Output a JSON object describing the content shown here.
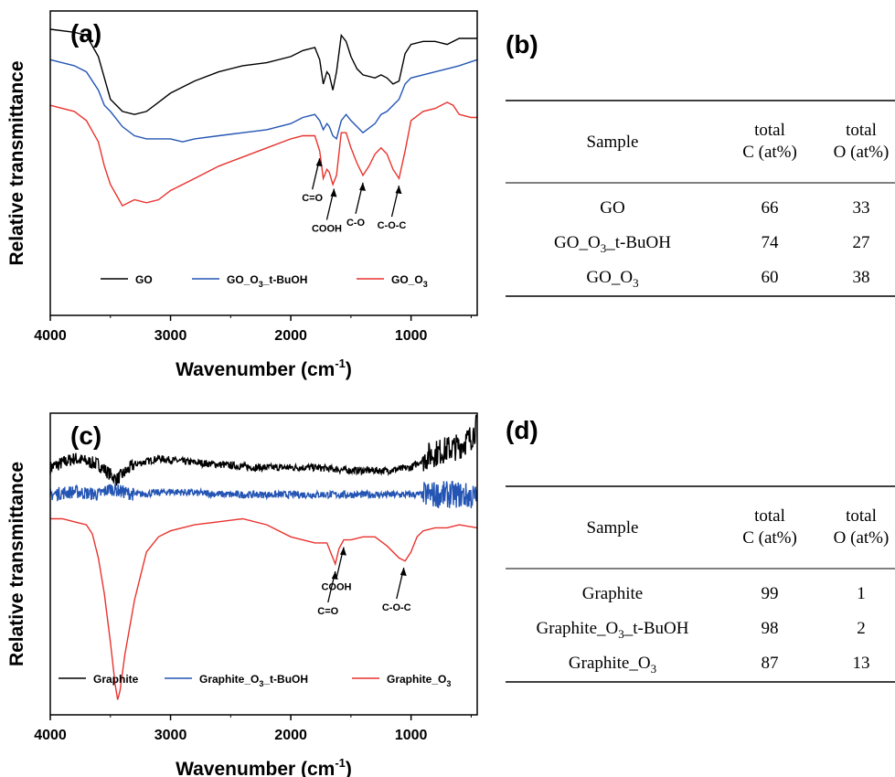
{
  "chart_data": [
    {
      "panel_label": "(a)",
      "type": "line",
      "xlabel": "Wavenumber (cm",
      "xlabel_sup": "-1",
      "xlabel_close": ")",
      "ylabel": "Relative transmittance",
      "xlim": [
        4000,
        450
      ],
      "x_reversed": true,
      "ylim": [
        0,
        100
      ],
      "y_ticks_shown": false,
      "xticks": [
        4000,
        3000,
        2000,
        1000
      ],
      "grid": false,
      "legend_position": "bottom",
      "series": [
        {
          "name": "GO",
          "color": "#000000",
          "points": [
            [
              4000,
              94
            ],
            [
              3800,
              93
            ],
            [
              3700,
              92
            ],
            [
              3600,
              85
            ],
            [
              3550,
              78
            ],
            [
              3500,
              71
            ],
            [
              3400,
              67
            ],
            [
              3300,
              66
            ],
            [
              3200,
              67
            ],
            [
              3100,
              70
            ],
            [
              3000,
              73
            ],
            [
              2800,
              77
            ],
            [
              2600,
              80
            ],
            [
              2400,
              82
            ],
            [
              2200,
              83
            ],
            [
              2000,
              85
            ],
            [
              1900,
              87
            ],
            [
              1800,
              88
            ],
            [
              1760,
              84
            ],
            [
              1730,
              76
            ],
            [
              1700,
              80
            ],
            [
              1680,
              79
            ],
            [
              1650,
              74
            ],
            [
              1620,
              80
            ],
            [
              1580,
              92
            ],
            [
              1540,
              90
            ],
            [
              1500,
              85
            ],
            [
              1450,
              81
            ],
            [
              1400,
              79
            ],
            [
              1300,
              78
            ],
            [
              1250,
              79
            ],
            [
              1200,
              78
            ],
            [
              1150,
              76
            ],
            [
              1100,
              77
            ],
            [
              1050,
              86
            ],
            [
              1000,
              89
            ],
            [
              900,
              90
            ],
            [
              800,
              90
            ],
            [
              700,
              89
            ],
            [
              600,
              91
            ],
            [
              450,
              91
            ]
          ]
        },
        {
          "name": "GO_O₃_t-BuOH",
          "color": "#2455b4",
          "points": [
            [
              4000,
              84
            ],
            [
              3800,
              82
            ],
            [
              3700,
              80
            ],
            [
              3600,
              74
            ],
            [
              3550,
              69
            ],
            [
              3500,
              67
            ],
            [
              3400,
              62
            ],
            [
              3300,
              59
            ],
            [
              3200,
              58
            ],
            [
              3000,
              58
            ],
            [
              2900,
              57
            ],
            [
              2800,
              58
            ],
            [
              2600,
              59
            ],
            [
              2400,
              60
            ],
            [
              2200,
              61
            ],
            [
              2000,
              63
            ],
            [
              1900,
              65
            ],
            [
              1800,
              66
            ],
            [
              1760,
              64
            ],
            [
              1730,
              61
            ],
            [
              1700,
              63
            ],
            [
              1680,
              62
            ],
            [
              1650,
              59
            ],
            [
              1620,
              58
            ],
            [
              1580,
              64
            ],
            [
              1540,
              66
            ],
            [
              1500,
              64
            ],
            [
              1450,
              62
            ],
            [
              1400,
              60
            ],
            [
              1300,
              63
            ],
            [
              1250,
              66
            ],
            [
              1200,
              67
            ],
            [
              1150,
              69
            ],
            [
              1100,
              71
            ],
            [
              1050,
              76
            ],
            [
              1000,
              78
            ],
            [
              900,
              79
            ],
            [
              800,
              80
            ],
            [
              700,
              81
            ],
            [
              600,
              82
            ],
            [
              450,
              84
            ]
          ]
        },
        {
          "name": "GO_O₃",
          "color": "#e8332e",
          "points": [
            [
              4000,
              69
            ],
            [
              3800,
              67
            ],
            [
              3700,
              64
            ],
            [
              3600,
              57
            ],
            [
              3550,
              49
            ],
            [
              3500,
              43
            ],
            [
              3400,
              36
            ],
            [
              3350,
              37
            ],
            [
              3300,
              38
            ],
            [
              3200,
              37
            ],
            [
              3100,
              38
            ],
            [
              3000,
              41
            ],
            [
              2800,
              45
            ],
            [
              2600,
              49
            ],
            [
              2400,
              52
            ],
            [
              2200,
              55
            ],
            [
              2000,
              58
            ],
            [
              1900,
              59
            ],
            [
              1800,
              59
            ],
            [
              1760,
              54
            ],
            [
              1730,
              45
            ],
            [
              1700,
              48
            ],
            [
              1680,
              47
            ],
            [
              1650,
              43
            ],
            [
              1620,
              46
            ],
            [
              1580,
              60
            ],
            [
              1540,
              60
            ],
            [
              1500,
              55
            ],
            [
              1450,
              50
            ],
            [
              1400,
              46
            ],
            [
              1350,
              49
            ],
            [
              1300,
              53
            ],
            [
              1250,
              55
            ],
            [
              1200,
              53
            ],
            [
              1150,
              48
            ],
            [
              1100,
              45
            ],
            [
              1050,
              54
            ],
            [
              1000,
              64
            ],
            [
              900,
              67
            ],
            [
              800,
              68
            ],
            [
              700,
              70
            ],
            [
              650,
              69
            ],
            [
              600,
              66
            ],
            [
              500,
              65
            ],
            [
              450,
              65
            ]
          ]
        }
      ],
      "annotations": [
        {
          "label": "C=O",
          "x": 1760
        },
        {
          "label": "COOH",
          "x": 1640
        },
        {
          "label": "C-O",
          "x": 1400
        },
        {
          "label": "C-O-C",
          "x": 1100
        }
      ],
      "legend": [
        {
          "label": "GO",
          "color": "#000000"
        },
        {
          "label_main": "GO_O",
          "label_sub": "3",
          "label_tail": "_t-BuOH",
          "color": "#2455b4"
        },
        {
          "label_main": "GO_O",
          "label_sub": "3",
          "label_tail": "",
          "color": "#e8332e"
        }
      ]
    },
    {
      "panel_label": "(c)",
      "type": "line",
      "xlabel": "Wavenumber (cm",
      "xlabel_sup": "-1",
      "xlabel_close": ")",
      "ylabel": "Relative transmittance",
      "xlim": [
        4000,
        450
      ],
      "x_reversed": true,
      "ylim": [
        0,
        100
      ],
      "y_ticks_shown": false,
      "xticks": [
        4000,
        3000,
        2000,
        1000
      ],
      "grid": false,
      "legend_position": "bottom",
      "series": [
        {
          "name": "Graphite",
          "color": "#000000",
          "noisy": true,
          "points": [
            [
              4000,
              82
            ],
            [
              3800,
              85
            ],
            [
              3600,
              83
            ],
            [
              3450,
              78
            ],
            [
              3300,
              83
            ],
            [
              3100,
              85
            ],
            [
              2900,
              84
            ],
            [
              2600,
              83
            ],
            [
              2300,
              82
            ],
            [
              2000,
              82
            ],
            [
              1800,
              82
            ],
            [
              1500,
              81
            ],
            [
              1200,
              81
            ],
            [
              1000,
              82
            ],
            [
              850,
              86
            ],
            [
              700,
              88
            ],
            [
              600,
              89
            ],
            [
              500,
              92
            ],
            [
              450,
              96
            ]
          ]
        },
        {
          "name": "Graphite_O₃_t-BuOH",
          "color": "#2455b4",
          "noisy": true,
          "points": [
            [
              4000,
              73
            ],
            [
              3800,
              74
            ],
            [
              3600,
              73
            ],
            [
              3500,
              75
            ],
            [
              3300,
              73
            ],
            [
              3000,
              74
            ],
            [
              2500,
              73
            ],
            [
              2000,
              73
            ],
            [
              1500,
              73
            ],
            [
              1000,
              73
            ],
            [
              800,
              73
            ],
            [
              600,
              73
            ],
            [
              450,
              72
            ]
          ]
        },
        {
          "name": "Graphite_O₃",
          "color": "#e8332e",
          "points": [
            [
              4000,
              65
            ],
            [
              3900,
              65
            ],
            [
              3800,
              64
            ],
            [
              3700,
              63
            ],
            [
              3650,
              60
            ],
            [
              3600,
              52
            ],
            [
              3550,
              40
            ],
            [
              3500,
              24
            ],
            [
              3460,
              10
            ],
            [
              3440,
              5
            ],
            [
              3420,
              8
            ],
            [
              3380,
              20
            ],
            [
              3300,
              38
            ],
            [
              3200,
              54
            ],
            [
              3100,
              59
            ],
            [
              3000,
              61
            ],
            [
              2800,
              63
            ],
            [
              2600,
              64
            ],
            [
              2400,
              65
            ],
            [
              2200,
              63
            ],
            [
              2000,
              59
            ],
            [
              1800,
              57
            ],
            [
              1700,
              57
            ],
            [
              1660,
              53
            ],
            [
              1630,
              50
            ],
            [
              1600,
              55
            ],
            [
              1560,
              58
            ],
            [
              1500,
              58
            ],
            [
              1400,
              59
            ],
            [
              1300,
              59
            ],
            [
              1200,
              56
            ],
            [
              1100,
              52
            ],
            [
              1050,
              51
            ],
            [
              1000,
              54
            ],
            [
              950,
              59
            ],
            [
              900,
              61
            ],
            [
              800,
              62
            ],
            [
              700,
              62
            ],
            [
              600,
              63
            ],
            [
              450,
              62
            ]
          ]
        }
      ],
      "annotations": [
        {
          "label": "C=O",
          "x": 1630
        },
        {
          "label": "COOH",
          "x": 1560
        },
        {
          "label": "C-O-C",
          "x": 1060
        }
      ],
      "legend": [
        {
          "label": "Graphite",
          "color": "#000000"
        },
        {
          "label_main": "Graphite_O",
          "label_sub": "3",
          "label_tail": "_t-BuOH",
          "color": "#2455b4"
        },
        {
          "label_main": "Graphite_O",
          "label_sub": "3",
          "label_tail": "",
          "color": "#e8332e"
        }
      ]
    },
    {
      "panel_label": "(b)",
      "type": "table",
      "columns": [
        {
          "line1": "Sample",
          "line2": ""
        },
        {
          "line1": "total",
          "line2": "C  (at%)"
        },
        {
          "line1": "total",
          "line2": "O (at%)"
        }
      ],
      "rows": [
        {
          "sample_main": "GO",
          "sample_sub": "",
          "sample_tail": "",
          "c": "66",
          "o": "33"
        },
        {
          "sample_main": "GO_O",
          "sample_sub": "3",
          "sample_tail": "_t-BuOH",
          "c": "74",
          "o": "27"
        },
        {
          "sample_main": "GO_O",
          "sample_sub": "3",
          "sample_tail": "",
          "c": "60",
          "o": "38"
        }
      ]
    },
    {
      "panel_label": "(d)",
      "type": "table",
      "columns": [
        {
          "line1": "Sample",
          "line2": ""
        },
        {
          "line1": "total",
          "line2": "C  (at%)"
        },
        {
          "line1": "total",
          "line2": "O (at%)"
        }
      ],
      "rows": [
        {
          "sample_main": "Graphite",
          "sample_sub": "",
          "sample_tail": "",
          "c": "99",
          "o": "1"
        },
        {
          "sample_main": "Graphite_O",
          "sample_sub": "3",
          "sample_tail": "_t-BuOH",
          "c": "98",
          "o": "2"
        },
        {
          "sample_main": "Graphite_O",
          "sample_sub": "3",
          "sample_tail": "",
          "c": "87",
          "o": "13"
        }
      ]
    }
  ]
}
